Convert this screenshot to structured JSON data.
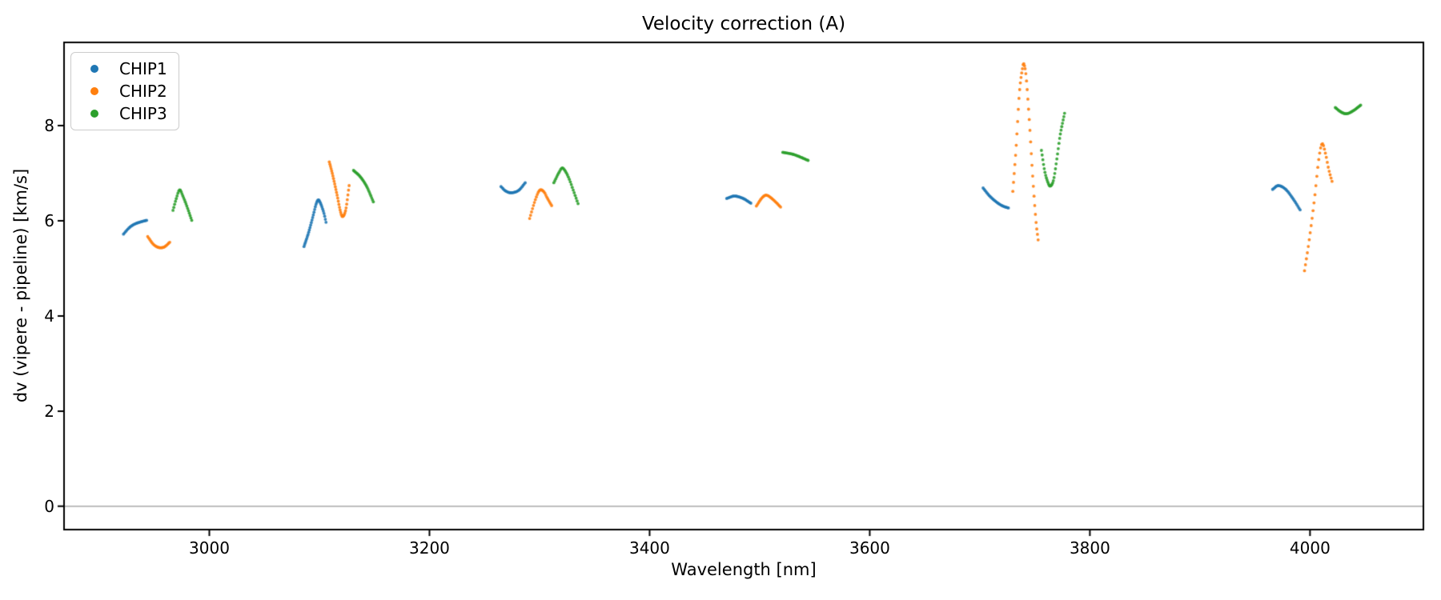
{
  "chart_data": {
    "type": "scatter",
    "title": "Velocity correction (A)",
    "xlabel": "Wavelength [nm]",
    "ylabel": "dv (vipere - pipeline) [km/s]",
    "xlim": [
      2868,
      4103
    ],
    "ylim": [
      -0.49,
      9.75
    ],
    "xticks": [
      3000,
      3200,
      3400,
      3600,
      3800,
      4000
    ],
    "yticks": [
      0,
      2,
      4,
      6,
      8
    ],
    "grid": false,
    "legend_position": "upper left",
    "zero_line": 0,
    "zero_line_color": "#999999",
    "axis_color": "#000000",
    "background_color": "#ffffff",
    "marker": "dot",
    "series": [
      {
        "name": "CHIP1",
        "color": "#1f77b4",
        "segments": [
          {
            "n": 22,
            "points": [
              [
                2922,
                5.72
              ],
              [
                2927,
                5.85
              ],
              [
                2932,
                5.93
              ],
              [
                2938,
                5.98
              ],
              [
                2943,
                6.01
              ]
            ]
          },
          {
            "n": 34,
            "points": [
              [
                3086,
                5.46
              ],
              [
                3090,
                5.74
              ],
              [
                3094,
                6.08
              ],
              [
                3097,
                6.35
              ],
              [
                3099,
                6.44
              ],
              [
                3101,
                6.37
              ],
              [
                3104,
                6.17
              ],
              [
                3106,
                5.97
              ]
            ]
          },
          {
            "n": 24,
            "points": [
              [
                3265,
                6.72
              ],
              [
                3269,
                6.63
              ],
              [
                3274,
                6.59
              ],
              [
                3281,
                6.64
              ],
              [
                3287,
                6.8
              ]
            ]
          },
          {
            "n": 24,
            "points": [
              [
                3470,
                6.47
              ],
              [
                3477,
                6.52
              ],
              [
                3485,
                6.47
              ],
              [
                3492,
                6.37
              ]
            ]
          },
          {
            "n": 26,
            "points": [
              [
                3703,
                6.69
              ],
              [
                3709,
                6.52
              ],
              [
                3716,
                6.38
              ],
              [
                3721,
                6.31
              ],
              [
                3726,
                6.27
              ]
            ]
          },
          {
            "n": 26,
            "points": [
              [
                3966,
                6.66
              ],
              [
                3971,
                6.74
              ],
              [
                3978,
                6.66
              ],
              [
                3985,
                6.45
              ],
              [
                3991,
                6.23
              ]
            ]
          }
        ]
      },
      {
        "name": "CHIP2",
        "color": "#ff7f0e",
        "segments": [
          {
            "n": 22,
            "points": [
              [
                2944,
                5.67
              ],
              [
                2949,
                5.51
              ],
              [
                2954,
                5.44
              ],
              [
                2959,
                5.45
              ],
              [
                2964,
                5.55
              ]
            ]
          },
          {
            "n": 34,
            "points": [
              [
                3109,
                7.24
              ],
              [
                3112,
                6.97
              ],
              [
                3116,
                6.55
              ],
              [
                3119,
                6.21
              ],
              [
                3121,
                6.09
              ],
              [
                3124,
                6.24
              ],
              [
                3127,
                6.74
              ]
            ]
          },
          {
            "n": 24,
            "points": [
              [
                3291,
                6.05
              ],
              [
                3296,
                6.43
              ],
              [
                3300,
                6.64
              ],
              [
                3304,
                6.61
              ],
              [
                3307,
                6.48
              ],
              [
                3311,
                6.32
              ]
            ]
          },
          {
            "n": 24,
            "points": [
              [
                3497,
                6.31
              ],
              [
                3502,
                6.48
              ],
              [
                3506,
                6.54
              ],
              [
                3512,
                6.45
              ],
              [
                3519,
                6.29
              ]
            ]
          },
          {
            "n": 38,
            "points": [
              [
                3730,
                6.62
              ],
              [
                3733,
                7.55
              ],
              [
                3736,
                8.7
              ],
              [
                3739,
                9.24
              ],
              [
                3740,
                9.3
              ],
              [
                3742,
                9.05
              ],
              [
                3745,
                8.1
              ],
              [
                3748,
                6.95
              ],
              [
                3751,
                6.0
              ],
              [
                3753,
                5.6
              ]
            ]
          },
          {
            "n": 30,
            "points": [
              [
                3995,
                4.95
              ],
              [
                3999,
                5.55
              ],
              [
                4004,
                6.45
              ],
              [
                4008,
                7.3
              ],
              [
                4011,
                7.62
              ],
              [
                4014,
                7.42
              ],
              [
                4017,
                7.08
              ],
              [
                4020,
                6.83
              ]
            ]
          }
        ]
      },
      {
        "name": "CHIP3",
        "color": "#2ca02c",
        "segments": [
          {
            "n": 24,
            "points": [
              [
                2967,
                6.22
              ],
              [
                2970,
                6.47
              ],
              [
                2973,
                6.65
              ],
              [
                2976,
                6.52
              ],
              [
                2980,
                6.28
              ],
              [
                2984,
                6.01
              ]
            ]
          },
          {
            "n": 24,
            "points": [
              [
                3131,
                7.06
              ],
              [
                3137,
                6.93
              ],
              [
                3143,
                6.72
              ],
              [
                3149,
                6.4
              ]
            ]
          },
          {
            "n": 26,
            "points": [
              [
                3313,
                6.8
              ],
              [
                3318,
                7.03
              ],
              [
                3321,
                7.11
              ],
              [
                3326,
                6.93
              ],
              [
                3331,
                6.62
              ],
              [
                3335,
                6.36
              ]
            ]
          },
          {
            "n": 24,
            "points": [
              [
                3521,
                7.44
              ],
              [
                3530,
                7.4
              ],
              [
                3537,
                7.34
              ],
              [
                3544,
                7.27
              ]
            ]
          },
          {
            "n": 34,
            "points": [
              [
                3756,
                7.48
              ],
              [
                3759,
                7.04
              ],
              [
                3762,
                6.8
              ],
              [
                3764,
                6.73
              ],
              [
                3767,
                6.86
              ],
              [
                3770,
                7.3
              ],
              [
                3773,
                7.8
              ],
              [
                3777,
                8.26
              ]
            ]
          },
          {
            "n": 26,
            "points": [
              [
                4023,
                8.38
              ],
              [
                4028,
                8.29
              ],
              [
                4033,
                8.25
              ],
              [
                4039,
                8.31
              ],
              [
                4046,
                8.43
              ]
            ]
          }
        ]
      }
    ]
  }
}
